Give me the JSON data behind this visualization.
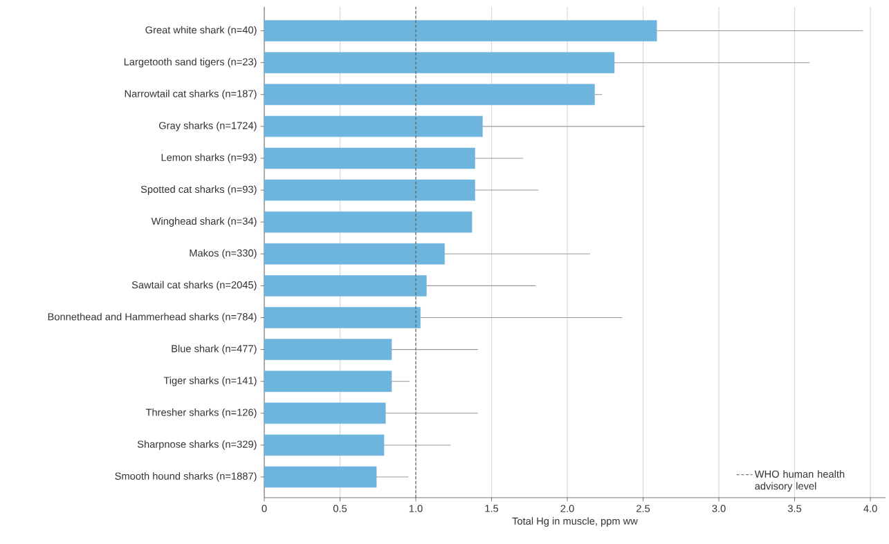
{
  "chart_data": {
    "type": "bar",
    "orientation": "horizontal",
    "xlabel": "Total Hg in muscle, ppm ww",
    "categories": [
      "Great white shark (n=40)",
      "Largetooth sand tigers (n=23)",
      "Narrowtail cat sharks (n=187)",
      "Gray sharks (n=1724)",
      "Lemon sharks (n=93)",
      "Spotted cat sharks (n=93)",
      "Winghead shark (n=34)",
      "Makos (n=330)",
      "Sawtail cat sharks (n=2045)",
      "Bonnethead and Hammerhead sharks (n=784)",
      "Blue shark (n=477)",
      "Tiger sharks (n=141)",
      "Thresher sharks (n=126)",
      "Sharpnose sharks (n=329)",
      "Smooth hound sharks (n=1887)"
    ],
    "values": [
      2.59,
      2.31,
      2.18,
      1.44,
      1.39,
      1.39,
      1.37,
      1.19,
      1.07,
      1.03,
      0.84,
      0.84,
      0.8,
      0.79,
      0.74
    ],
    "errors": [
      [
        2.59,
        3.95
      ],
      [
        2.31,
        3.6
      ],
      [
        2.18,
        2.23
      ],
      [
        1.44,
        2.51
      ],
      [
        1.39,
        1.71
      ],
      [
        1.39,
        1.81
      ],
      null,
      [
        1.19,
        2.15
      ],
      [
        1.07,
        1.79
      ],
      [
        1.03,
        2.36
      ],
      [
        0.84,
        1.41
      ],
      [
        0.84,
        0.96
      ],
      [
        0.8,
        1.41
      ],
      [
        0.79,
        1.23
      ],
      [
        0.74,
        0.95
      ]
    ],
    "color": "#6eb5de",
    "xlim": [
      0,
      4.1
    ],
    "xticks": [
      0,
      0.5,
      {
        "value": 1,
        "label": "1.0"
      },
      1.5,
      {
        "value": 2,
        "label": "2.0"
      },
      2.5,
      {
        "value": 3,
        "label": "3.0"
      },
      3.5,
      {
        "value": 4,
        "label": "4.0"
      }
    ],
    "grid": "x",
    "ref_lines": [
      {
        "axis": "x",
        "value": 1,
        "label": "WHO human health advisory level",
        "color": "#555555",
        "line_style": "dashed"
      }
    ],
    "legend": "bottom right"
  }
}
